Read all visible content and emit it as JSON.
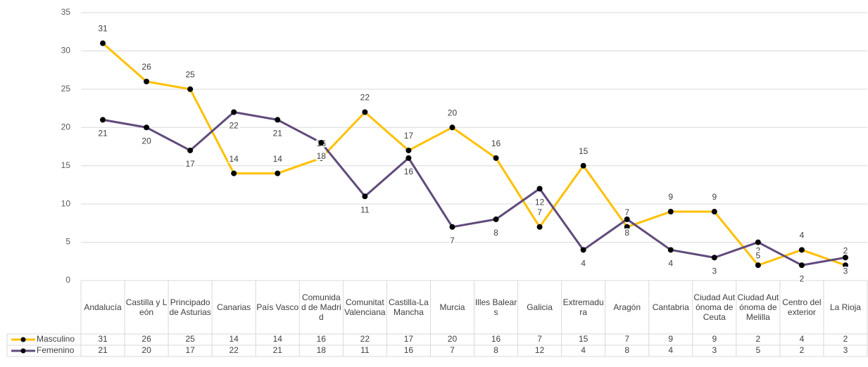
{
  "chart_data": {
    "type": "line",
    "categories": [
      "Andalucía",
      "Castilla y León",
      "Principado de Asturias",
      "Canarias",
      "País Vasco",
      "Comunidad de Madrid",
      "Comunitat Valenciana",
      "Castilla-La Mancha",
      "Murcia",
      "Illes Balears",
      "Galicia",
      "Extremadura",
      "Aragón",
      "Cantabria",
      "Ciudad Autónoma de Ceuta",
      "Ciudad Autónoma de Melilla",
      "Centro del exterior",
      "La Rioja"
    ],
    "series": [
      {
        "name": "Masculino",
        "color": "#ffc000",
        "values": [
          31,
          26,
          25,
          14,
          14,
          16,
          22,
          17,
          20,
          16,
          7,
          15,
          7,
          9,
          9,
          2,
          4,
          2
        ]
      },
      {
        "name": "Femenino",
        "color": "#604a7b",
        "values": [
          21,
          20,
          17,
          22,
          21,
          18,
          11,
          16,
          7,
          8,
          12,
          4,
          8,
          4,
          3,
          5,
          2,
          3
        ]
      }
    ],
    "ylim": [
      0,
      35
    ],
    "yticks": [
      0,
      5,
      10,
      15,
      20,
      25,
      30,
      35
    ],
    "grid": true
  }
}
